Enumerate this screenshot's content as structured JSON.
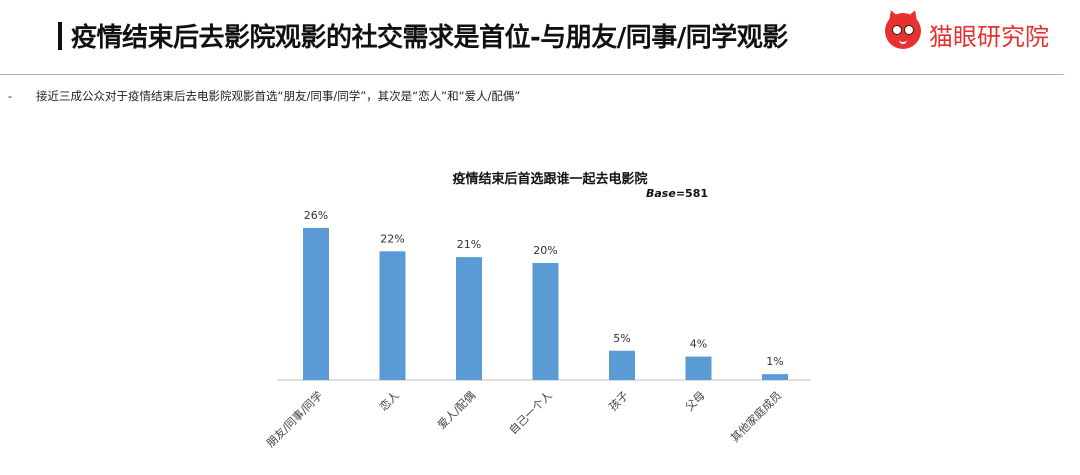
{
  "header": {
    "title": "疫情结束后去影院观影的社交需求是首位-与朋友/同事/同学观影",
    "logo_text": "猫眼研究院",
    "brand_color": "#e8302f"
  },
  "bullet": {
    "marker": "-",
    "text": "接近三成公众对于疫情结束后去电影院观影首选“朋友/同事/同学”，其次是“恋人”和“爱人/配偶”"
  },
  "chart_data": {
    "type": "bar",
    "title": "疫情结束后首选跟谁一起去电影院",
    "base_label": "Base",
    "base_value": "=581",
    "categories": [
      "朋友/同事/同学",
      "恋人",
      "爱人/配偶",
      "自己一个人",
      "孩子",
      "父母",
      "其他家庭成员"
    ],
    "values": [
      26,
      22,
      21,
      20,
      5,
      4,
      1
    ],
    "value_labels": [
      "26%",
      "22%",
      "21%",
      "20%",
      "5%",
      "4%",
      "1%"
    ],
    "unit": "%",
    "ylim": [
      0,
      30
    ],
    "bar_color": "#5b9bd5",
    "grid": false,
    "legend": "none"
  }
}
